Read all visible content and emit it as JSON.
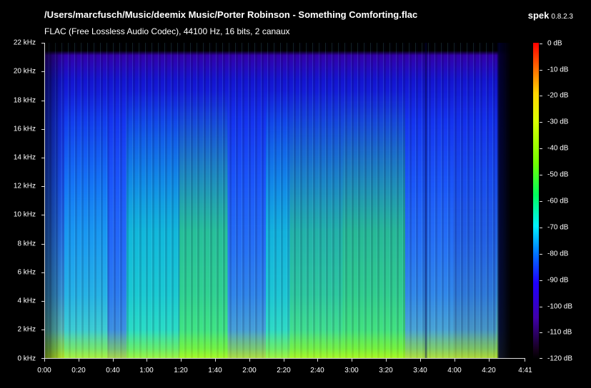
{
  "header": {
    "file_path": "/Users/marcfusch/Music/deemix Music/Porter Robinson - Something Comforting.flac",
    "audio_info": "FLAC (Free Lossless Audio Codec), 44100 Hz, 16 bits, 2 canaux",
    "app_name": "spek",
    "app_version": "0.8.2.3"
  },
  "frequency_axis": {
    "labels": [
      "22 kHz",
      "20 kHz",
      "18 kHz",
      "16 kHz",
      "14 kHz",
      "12 kHz",
      "10 kHz",
      "8 kHz",
      "6 kHz",
      "4 kHz",
      "2 kHz",
      "0 kHz"
    ]
  },
  "time_axis": {
    "labels": [
      "0:00",
      "0:20",
      "0:40",
      "1:00",
      "1:20",
      "1:40",
      "2:00",
      "2:20",
      "2:40",
      "3:00",
      "3:20",
      "3:40",
      "4:00",
      "4:20",
      "4:41"
    ]
  },
  "db_scale": {
    "labels": [
      "0 dB",
      "-10 dB",
      "-20 dB",
      "-30 dB",
      "-40 dB",
      "-50 dB",
      "-60 dB",
      "-70 dB",
      "-80 dB",
      "-90 dB",
      "-100 dB",
      "-110 dB",
      "-120 dB"
    ]
  },
  "colors": {
    "background": "#000000",
    "spectrum_low": "#1a0066",
    "spectrum_mid": "#0030ff",
    "spectrum_cyan": "#00d8ff",
    "spectrum_green": "#33ff22",
    "spectrum_yellow": "#e8ff00"
  }
}
